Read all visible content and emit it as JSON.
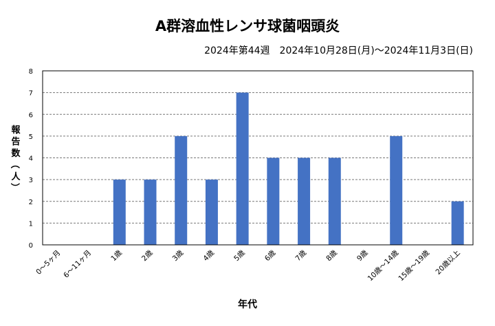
{
  "chart_data": {
    "type": "bar",
    "title": "A群溶血性レンサ球菌咽頭炎",
    "subtitle": "2024年第44週　2024年10月28日(月)～2024年11月3日(日)",
    "xlabel": "年代",
    "ylabel": "報告数（人）",
    "categories": [
      "0～5ヶ月",
      "6～11ヶ月",
      "1歳",
      "2歳",
      "3歳",
      "4歳",
      "5歳",
      "6歳",
      "7歳",
      "8歳",
      "9歳",
      "10歳～14歳",
      "15歳～19歳",
      "20歳以上"
    ],
    "values": [
      0,
      0,
      3,
      3,
      5,
      3,
      7,
      4,
      4,
      4,
      0,
      5,
      0,
      2
    ],
    "ylim": [
      0,
      8
    ],
    "yticks": [
      0,
      1,
      2,
      3,
      4,
      5,
      6,
      7,
      8
    ],
    "grid": true,
    "bar_color": "#4472C4"
  }
}
